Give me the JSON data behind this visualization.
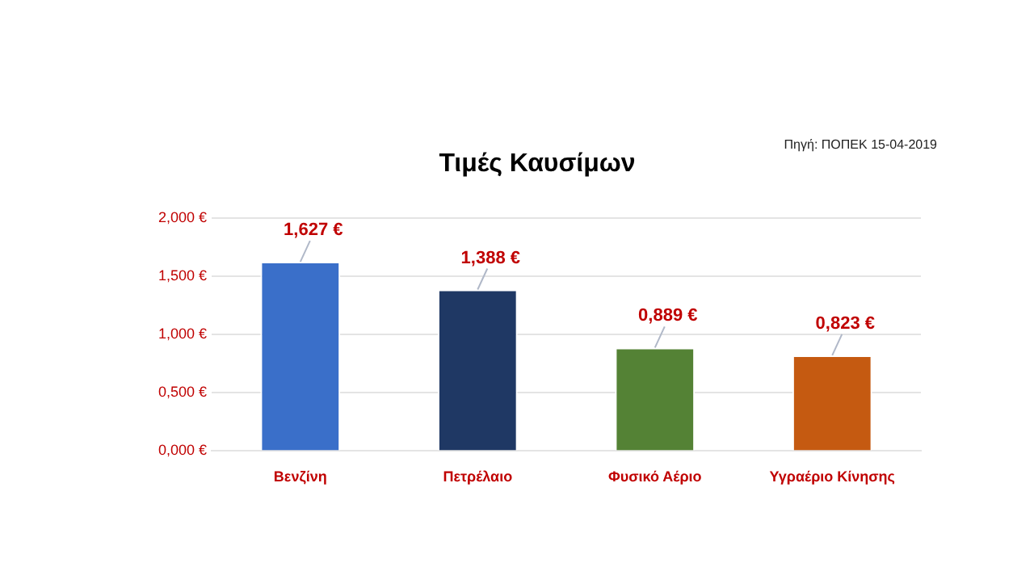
{
  "chart_data": {
    "type": "bar",
    "title": "Τιμές Καυσίμων",
    "annotations": [
      "Πηγή: ΠΟΠΕΚ 15-04-2019"
    ],
    "categories": [
      "Βενζίνη",
      "Πετρέλαιο",
      "Φυσικό Αέριο",
      "Υγραέριο Κίνησης"
    ],
    "values": [
      1.627,
      1.388,
      0.889,
      0.823
    ],
    "colors": [
      "#3a6fc9",
      "#1f3864",
      "#548235",
      "#c55a11"
    ],
    "value_labels": [
      "1,627 €",
      "1,388 €",
      "0,889 €",
      "0,823 €"
    ],
    "ylim": [
      0,
      2
    ],
    "yticks": [
      {
        "value": 0,
        "label": "0,000 €"
      },
      {
        "value": 0.5,
        "label": "0,500 €"
      },
      {
        "value": 1,
        "label": "1,000 €"
      },
      {
        "value": 1.5,
        "label": "1,500 €"
      },
      {
        "value": 2,
        "label": "2,000 €"
      }
    ],
    "grid": "y",
    "legend": false
  }
}
